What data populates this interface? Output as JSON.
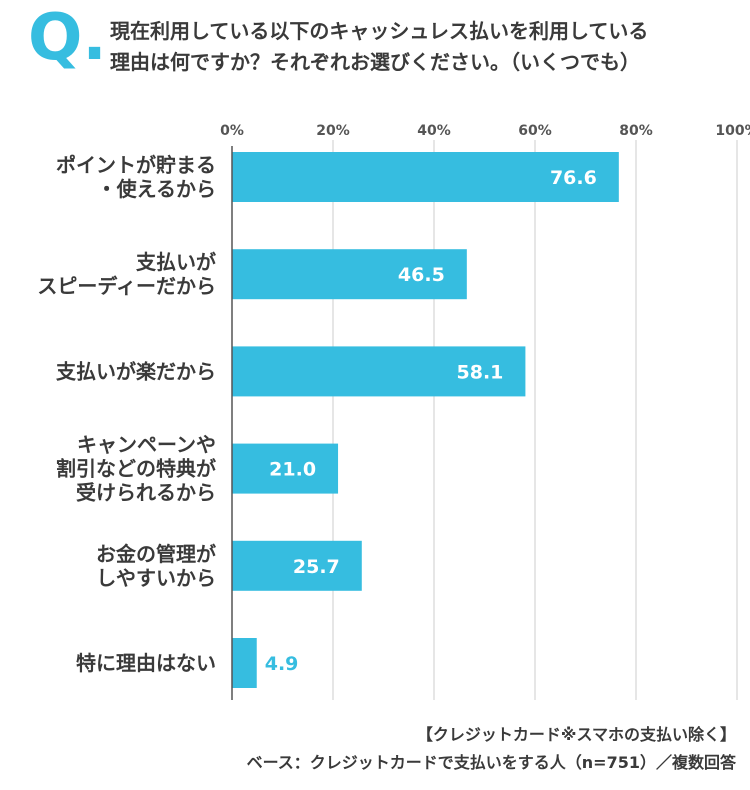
{
  "question": {
    "mark": "Q.",
    "line1": "現在利用している以下のキャッシュレス払いを利用している",
    "line2": "理由は何ですか？それぞれお選びください。（いくつでも）"
  },
  "chart_data": {
    "type": "bar",
    "orientation": "horizontal",
    "categories": [
      [
        "ポイントが貯まる",
        "・使えるから"
      ],
      [
        "支払いが",
        "スピーディーだから"
      ],
      [
        "支払いが楽だから"
      ],
      [
        "キャンペーンや",
        "割引などの特典が",
        "受けられるから"
      ],
      [
        "お金の管理が",
        "しやすいから"
      ],
      [
        "特に理由はない"
      ]
    ],
    "values": [
      76.6,
      46.5,
      58.1,
      21.0,
      25.7,
      4.9
    ],
    "value_labels": [
      "76.6",
      "46.5",
      "58.1",
      "21.0",
      "25.7",
      "4.9"
    ],
    "xlim": [
      0,
      100
    ],
    "x_ticks": [
      "0%",
      "20%",
      "40%",
      "60%",
      "80%",
      "100%"
    ],
    "grid": true,
    "bar_color": "#36bde0",
    "grid_color": "#cccccc"
  },
  "footer": {
    "note": "【クレジットカード※スマホの支払い除く】",
    "base": "ベース：クレジットカードで支払いをする人（n=751）／複数回答"
  }
}
